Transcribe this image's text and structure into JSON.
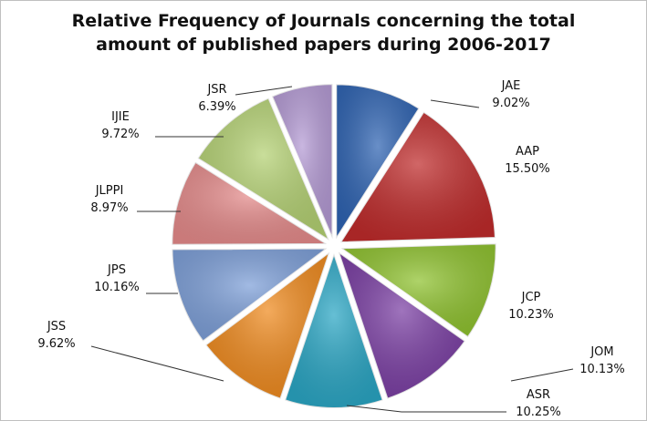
{
  "chart_data": {
    "type": "pie",
    "title_lines": [
      "Relative Frequency of Journals concerning the total",
      "amount of published papers during 2006-2017"
    ],
    "slices": [
      {
        "label": "JAE",
        "value_text": "9.02%",
        "value": 9.02,
        "color": "#2e63b2"
      },
      {
        "label": "AAP",
        "value_text": "15.50%",
        "value": 15.5,
        "color": "#bf2b2b"
      },
      {
        "label": "JCP",
        "value_text": "10.23%",
        "value": 10.23,
        "color": "#8fc22f"
      },
      {
        "label": "JOM",
        "value_text": "10.13%",
        "value": 10.13,
        "color": "#7a3ea3"
      },
      {
        "label": "ASR",
        "value_text": "10.25%",
        "value": 10.25,
        "color": "#2aa6c4"
      },
      {
        "label": "JSS",
        "value_text": "9.62%",
        "value": 9.62,
        "color": "#ef8a1e"
      },
      {
        "label": "JPS",
        "value_text": "10.16%",
        "value": 10.16,
        "color": "#7d9fd8"
      },
      {
        "label": "JLPPI",
        "value_text": "8.97%",
        "value": 8.97,
        "color": "#e58b8b"
      },
      {
        "label": "IJIE",
        "value_text": "9.72%",
        "value": 9.72,
        "color": "#b4d173"
      },
      {
        "label": "JSR",
        "value_text": "6.39%",
        "value": 6.39,
        "color": "#b49ad4"
      }
    ],
    "legend": "none",
    "exploded": true
  }
}
